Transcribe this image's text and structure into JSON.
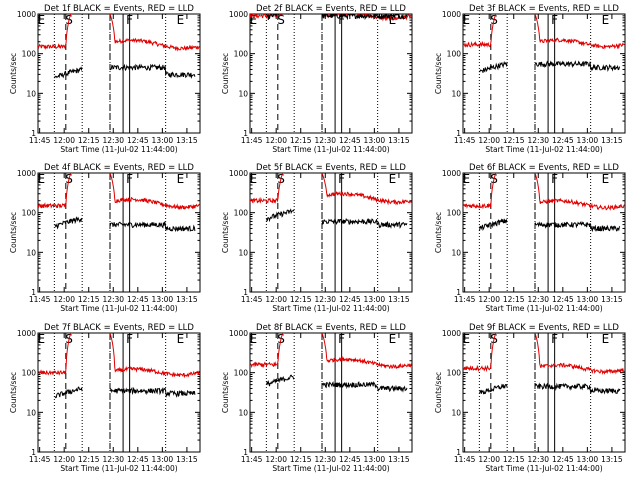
{
  "chart_data": {
    "type": "line",
    "layout": "3x3 grid of panels",
    "x_axis": {
      "label": "Start Time (11-Jul-02 11:44:00)",
      "tick_labels": [
        "11:45",
        "12:00",
        "12:15",
        "12:30",
        "12:45",
        "13:00",
        "13:15"
      ],
      "tick_minutes": [
        1,
        16,
        31,
        46,
        61,
        76,
        91
      ],
      "range_minutes": [
        0,
        99
      ],
      "unit_note": "minutes after 11:44:00"
    },
    "y_axis": {
      "label": "Counts/sec",
      "scale": "log",
      "range": [
        1,
        1000
      ],
      "tick_labels": [
        "1",
        "10",
        "100",
        "1000"
      ],
      "tick_values": [
        1,
        10,
        100,
        1000
      ]
    },
    "series_legend": {
      "black": "Events",
      "red": "LLD"
    },
    "colors": {
      "events": "#000000",
      "lld": "#e00000",
      "axes": "#000000"
    },
    "markers": {
      "labels": [
        "E",
        "S",
        "F",
        "E"
      ],
      "label_minutes": [
        2,
        19,
        56,
        87
      ],
      "dotted_lines_minutes": [
        10,
        27,
        44,
        78
      ],
      "dashed_lines_minutes": [
        17,
        44
      ],
      "solid_lines_minutes": [
        52,
        56
      ]
    },
    "panels": [
      {
        "title": "Det 1f BLACK = Events, RED = LLD",
        "lld": {
          "pre": 150,
          "peak_in": 1000,
          "after": 200,
          "late": 150
        },
        "events": {
          "pre": 25,
          "after": 45,
          "late": 30
        }
      },
      {
        "title": "Det 2f BLACK = Events, RED = LLD",
        "lld": {
          "pre": 900,
          "peak_in": 1000,
          "after": 900,
          "late": 900
        },
        "events": {
          "pre": 800,
          "after": 900,
          "late": 900
        }
      },
      {
        "title": "Det 3f BLACK = Events, RED = LLD",
        "lld": {
          "pre": 170,
          "peak_in": 1000,
          "after": 200,
          "late": 170
        },
        "events": {
          "pre": 35,
          "after": 55,
          "late": 45
        }
      },
      {
        "title": "Det 4f BLACK = Events, RED = LLD",
        "lld": {
          "pre": 150,
          "peak_in": 1000,
          "after": 200,
          "late": 150
        },
        "events": {
          "pre": 45,
          "after": 50,
          "late": 40
        }
      },
      {
        "title": "Det 5f BLACK = Events, RED = LLD",
        "lld": {
          "pre": 200,
          "peak_in": 1000,
          "after": 280,
          "late": 200
        },
        "events": {
          "pre": 70,
          "after": 60,
          "late": 50
        }
      },
      {
        "title": "Det 6f BLACK = Events, RED = LLD",
        "lld": {
          "pre": 150,
          "peak_in": 1000,
          "after": 180,
          "late": 150
        },
        "events": {
          "pre": 40,
          "after": 50,
          "late": 40
        }
      },
      {
        "title": "Det 7f BLACK = Events, RED = LLD",
        "lld": {
          "pre": 100,
          "peak_in": 1000,
          "after": 110,
          "late": 100
        },
        "events": {
          "pre": 25,
          "after": 35,
          "late": 30
        }
      },
      {
        "title": "Det 8f BLACK = Events, RED = LLD",
        "lld": {
          "pre": 160,
          "peak_in": 1000,
          "after": 200,
          "late": 160
        },
        "events": {
          "pre": 50,
          "after": 50,
          "late": 40
        }
      },
      {
        "title": "Det 9f BLACK = Events, RED = LLD",
        "lld": {
          "pre": 130,
          "peak_in": 1000,
          "after": 140,
          "late": 120
        },
        "events": {
          "pre": 30,
          "after": 45,
          "late": 35
        }
      }
    ]
  }
}
